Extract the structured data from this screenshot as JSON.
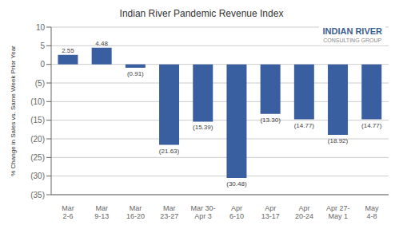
{
  "chart_data": {
    "type": "bar",
    "title": "Indian River Pandemic Revenue Index",
    "categories": [
      "Mar\n2-6",
      "Mar\n9-13",
      "Mar\n16-20",
      "Mar\n23-27",
      "Mar 30-\nApr 3",
      "Apr\n6-10",
      "Apr\n13-17",
      "Apr\n20-24",
      "Apr 27-\nMay 1",
      "May\n4-8"
    ],
    "values": [
      2.55,
      4.48,
      -0.91,
      -21.63,
      -15.39,
      -30.48,
      -13.3,
      -14.77,
      -18.92,
      -14.77
    ],
    "value_labels": [
      "2.55",
      "4.48",
      "(0.91)",
      "(21.63)",
      "(15.39)",
      "(30.48)",
      "(13.30)",
      "(14.77)",
      "(18.92)",
      "(14.77)"
    ],
    "data_labels": true,
    "color": "#3A5FA0",
    "ylabel": "% Change in Sales vs. Same Week Prior Year",
    "ylim": [
      -35,
      10
    ],
    "yticks": [
      10,
      5,
      0,
      {
        "value": -5,
        "label": "(5)"
      },
      {
        "value": -10,
        "label": "(10)"
      },
      {
        "value": -15,
        "label": "(15)"
      },
      {
        "value": -20,
        "label": "(20)"
      },
      {
        "value": -25,
        "label": "(25)"
      },
      {
        "value": -30,
        "label": "(30)"
      },
      {
        "value": -35,
        "label": "(35)"
      }
    ],
    "grid": true,
    "annotations": [
      "INDIAN RIVER",
      "CONSULTING GROUP"
    ]
  }
}
